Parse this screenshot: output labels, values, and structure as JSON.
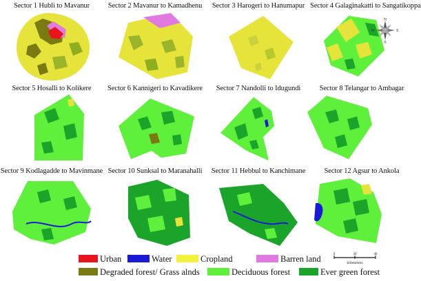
{
  "sectors": [
    {
      "title": "Sector 1 Hubli to Mavanur"
    },
    {
      "title": "Sector 2 Mavanur to Kamadhenu"
    },
    {
      "title": "Sector 3 Harogeri to Hanumapur"
    },
    {
      "title": "Sector 4 Galaginakatti to Sangatikoppa"
    },
    {
      "title": "Sector 5 Hosalli to Kolikere"
    },
    {
      "title": "Sector 6 Kannigeri to Kavadikere"
    },
    {
      "title": "Sector 7 Nandolli to Idugundi"
    },
    {
      "title": "Sector 8 Telangar to Ambagar"
    },
    {
      "title": "Sector 9 Kodlagadde to Mavinmane"
    },
    {
      "title": "Sector 10 Sunksal to Maranahalli"
    },
    {
      "title": "Sector 11 Hebbul to Kanchimane"
    },
    {
      "title": "Sector 12 Agsur to Ankola"
    }
  ],
  "legend": {
    "urban": {
      "label": "Urban",
      "color": "#e8141e"
    },
    "water": {
      "label": "Water",
      "color": "#1a1ad6"
    },
    "cropland": {
      "label": "Cropland",
      "color": "#f2f23a"
    },
    "barren": {
      "label": "Barren land",
      "color": "#e07ae0"
    },
    "degraded": {
      "label": "Degraded forest/ Grass alnds",
      "color": "#7a7a12"
    },
    "deciduous": {
      "label": "Deciduous forest",
      "color": "#5ef03a"
    },
    "evergreen": {
      "label": "Ever green forest",
      "color": "#1aa52a"
    }
  },
  "compass": {
    "n": "N",
    "e": "E",
    "s": "S",
    "w": "W"
  },
  "scale": {
    "ticks": [
      "0",
      "20",
      "40"
    ],
    "unit": "kilometres"
  }
}
